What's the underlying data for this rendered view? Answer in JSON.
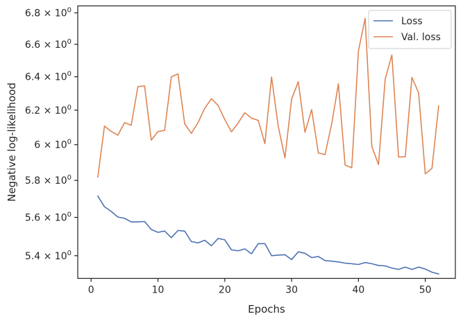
{
  "chart_data": {
    "type": "line",
    "xlabel": "Epochs",
    "ylabel": "Negative log-likelihood",
    "yscale": "log",
    "xlim": [
      -2,
      54.5
    ],
    "ylim": [
      5.285,
      6.845
    ],
    "xticks": [
      0,
      10,
      20,
      30,
      40,
      50
    ],
    "xtick_labels": [
      "0",
      "10",
      "20",
      "30",
      "40",
      "50"
    ],
    "yticks": [
      5.4,
      5.6,
      5.8,
      6.0,
      6.2,
      6.4,
      6.6,
      6.8
    ],
    "ytick_labels": [
      {
        "mantissa": "5.4",
        "base": "10",
        "exp": "0"
      },
      {
        "mantissa": "5.6",
        "base": "10",
        "exp": "0"
      },
      {
        "mantissa": "5.8",
        "base": "10",
        "exp": "0"
      },
      {
        "mantissa": "6",
        "base": "10",
        "exp": "0"
      },
      {
        "mantissa": "6.2",
        "base": "10",
        "exp": "0"
      },
      {
        "mantissa": "6.4",
        "base": "10",
        "exp": "0"
      },
      {
        "mantissa": "6.6",
        "base": "10",
        "exp": "0"
      },
      {
        "mantissa": "6.8",
        "base": "10",
        "exp": "0"
      }
    ],
    "grid": false,
    "legend_position": "top-right",
    "x": [
      1,
      2,
      3,
      4,
      5,
      6,
      7,
      8,
      9,
      10,
      11,
      12,
      13,
      14,
      15,
      16,
      17,
      18,
      19,
      20,
      21,
      22,
      23,
      24,
      25,
      26,
      27,
      28,
      29,
      30,
      31,
      32,
      33,
      34,
      35,
      36,
      37,
      38,
      39,
      40,
      41,
      42,
      43,
      44,
      45,
      46,
      47,
      48,
      49,
      50,
      51,
      52
    ],
    "series": [
      {
        "name": "Loss",
        "color": "#4c72b0",
        "values": [
          5.715,
          5.657,
          5.632,
          5.602,
          5.595,
          5.576,
          5.576,
          5.578,
          5.536,
          5.521,
          5.528,
          5.493,
          5.531,
          5.527,
          5.473,
          5.466,
          5.48,
          5.451,
          5.489,
          5.482,
          5.43,
          5.425,
          5.435,
          5.41,
          5.462,
          5.462,
          5.4,
          5.403,
          5.405,
          5.38,
          5.42,
          5.412,
          5.39,
          5.396,
          5.375,
          5.372,
          5.368,
          5.362,
          5.359,
          5.355,
          5.365,
          5.359,
          5.35,
          5.348,
          5.337,
          5.33,
          5.342,
          5.33,
          5.342,
          5.332,
          5.316,
          5.307
        ]
      },
      {
        "name": "Val. loss",
        "color": "#dd8452",
        "values": [
          5.818,
          6.107,
          6.076,
          6.054,
          6.127,
          6.112,
          6.34,
          6.345,
          6.026,
          6.075,
          6.082,
          6.399,
          6.417,
          6.12,
          6.065,
          6.127,
          6.211,
          6.268,
          6.228,
          6.145,
          6.074,
          6.125,
          6.185,
          6.153,
          6.14,
          6.006,
          6.398,
          6.105,
          5.925,
          6.266,
          6.37,
          6.071,
          6.203,
          5.953,
          5.944,
          6.121,
          6.357,
          5.885,
          5.87,
          6.56,
          6.764,
          5.99,
          5.888,
          6.385,
          6.534,
          5.93,
          5.932,
          6.396,
          6.303,
          5.836,
          5.867,
          6.226
        ]
      }
    ]
  }
}
